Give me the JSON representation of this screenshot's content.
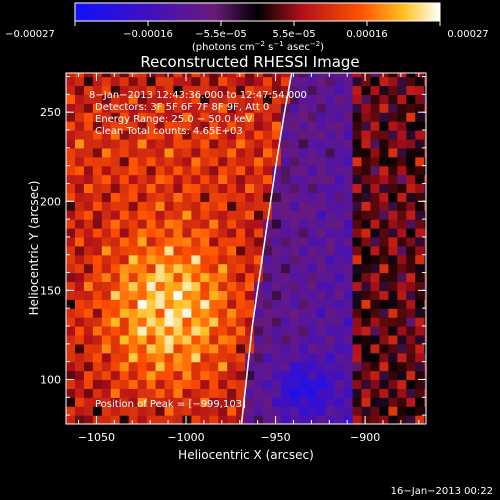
{
  "colorbar": {
    "tick_labels": [
      "−0.00027",
      "−0.00016",
      "−5.5e−05",
      "5.5e−05",
      "0.00016",
      "0.00027"
    ],
    "units_main": "(photons cm",
    "units_exp1": "−2",
    "units_mid": " s",
    "units_exp2": "−1",
    "units_end": " asec",
    "units_exp3": "−2",
    "units_close": ")",
    "min": -0.00027,
    "max": 0.00027
  },
  "annotations": {
    "time_range": "8−Jan−2013 12:43:36.000 to 12:47:54.000",
    "detectors": "Detectors: 3F 5F 6F 7F 8F 9F, Att 0",
    "energy": "Energy Range: 25.0 − 50.0 keV",
    "algorithm": "Clean     Total counts: 4.65E+03",
    "peak": "Position of Peak = [−999,103]"
  },
  "footer": {
    "date_stamp": "16−Jan−2013 00:22"
  },
  "chart_data": {
    "type": "heatmap",
    "title": "Reconstructed RHESSI Image",
    "xlabel": "Heliocentric X (arcsec)",
    "ylabel": "Heliocentric Y (arcsec)",
    "xlim": [
      -1067,
      -866
    ],
    "ylim": [
      75,
      272
    ],
    "x_ticks": [
      -1050,
      -1000,
      -950,
      -900
    ],
    "x_tick_labels": [
      "−1050",
      "−1000",
      "−950",
      "−900"
    ],
    "y_ticks": [
      100,
      150,
      200,
      250
    ],
    "y_tick_labels": [
      "100",
      "150",
      "200",
      "250"
    ],
    "limb_line": {
      "description": "solar limb",
      "x": [
        -969,
        -963,
        -955,
        -949,
        -945,
        -941
      ],
      "y": [
        75,
        130,
        185,
        225,
        250,
        272
      ]
    },
    "peak_position": [
      -999,
      103
    ],
    "colormap": "blue-purple-red-orange-yellow-white (RHESSI), negative to positive flux"
  }
}
